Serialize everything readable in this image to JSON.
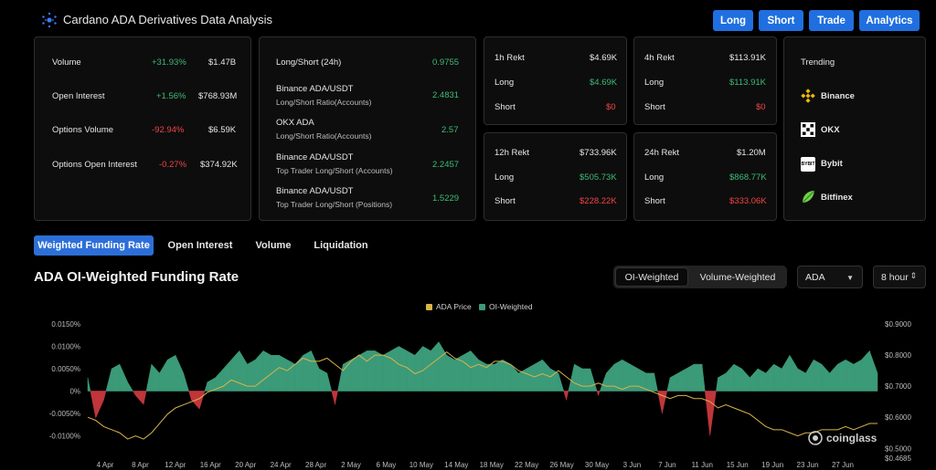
{
  "header": {
    "title": "Cardano ADA Derivatives Data Analysis",
    "nav": [
      "Long",
      "Short",
      "Trade",
      "Analytics"
    ],
    "accent": "#1f6fe0"
  },
  "stats": [
    {
      "label": "Volume",
      "change": "+31.93%",
      "value": "$1.47B",
      "dir": "up"
    },
    {
      "label": "Open Interest",
      "change": "+1.56%",
      "value": "$768.93M",
      "dir": "up"
    },
    {
      "label": "Options Volume",
      "change": "-92.94%",
      "value": "$6.59K",
      "dir": "down"
    },
    {
      "label": "Options Open Interest",
      "change": "-0.27%",
      "value": "$374.92K",
      "dir": "down"
    }
  ],
  "ratios": [
    {
      "label": "Long/Short (24h)",
      "sub": "",
      "value": "0.9755"
    },
    {
      "label": "Binance ADA/USDT",
      "sub": "Long/Short Ratio(Accounts)",
      "value": "2.4831"
    },
    {
      "label": "OKX ADA",
      "sub": "Long/Short Ratio(Accounts)",
      "value": "2.57"
    },
    {
      "label": "Binance ADA/USDT",
      "sub": "Top Trader Long/Short (Accounts)",
      "value": "2.2457"
    },
    {
      "label": "Binance ADA/USDT",
      "sub": "Top Trader Long/Short (Positions)",
      "value": "1.5229"
    }
  ],
  "rekt": [
    {
      "title": "1h Rekt",
      "total": "$4.69K",
      "long_label": "Long",
      "long": "$4.69K",
      "short_label": "Short",
      "short": "$0"
    },
    {
      "title": "4h Rekt",
      "total": "$113.91K",
      "long_label": "Long",
      "long": "$113.91K",
      "short_label": "Short",
      "short": "$0"
    },
    {
      "title": "12h Rekt",
      "total": "$733.96K",
      "long_label": "Long",
      "long": "$505.73K",
      "short_label": "Short",
      "short": "$228.22K"
    },
    {
      "title": "24h Rekt",
      "total": "$1.20M",
      "long_label": "Long",
      "long": "$868.77K",
      "short_label": "Short",
      "short": "$333.06K"
    }
  ],
  "trending": {
    "title": "Trending",
    "items": [
      {
        "name": "Binance",
        "icon": "binance-icon"
      },
      {
        "name": "OKX",
        "icon": "okx-icon"
      },
      {
        "name": "Bybit",
        "icon": "bybit-icon",
        "icon_text": "BYBIT"
      },
      {
        "name": "Bitfinex",
        "icon": "bitfinex-icon"
      }
    ]
  },
  "tabs": [
    "Weighted Funding Rate",
    "Open Interest",
    "Volume",
    "Liquidation"
  ],
  "chart_header": {
    "title": "ADA OI-Weighted Funding Rate",
    "segments": [
      "OI-Weighted",
      "Volume-Weighted"
    ],
    "coin_select": "ADA",
    "interval_select": "8 hour",
    "watermark": "coinglass"
  },
  "colors": {
    "positive": "#3b9a78",
    "negative": "#c0363b",
    "price": "#d9b44a"
  },
  "chart_data": {
    "type": "area",
    "title": "ADA OI-Weighted Funding Rate",
    "legend": [
      "ADA Price",
      "OI-Weighted"
    ],
    "legend_position": "top-center",
    "x_labels": [
      "4 Apr",
      "8 Apr",
      "12 Apr",
      "16 Apr",
      "20 Apr",
      "24 Apr",
      "28 Apr",
      "2 May",
      "6 May",
      "10 May",
      "14 May",
      "18 May",
      "22 May",
      "26 May",
      "30 May",
      "3 Jun",
      "7 Jun",
      "11 Jun",
      "15 Jun",
      "19 Jun",
      "23 Jun",
      "27 Jun"
    ],
    "y_left_ticks": [
      "0.0150%",
      "0.0100%",
      "0.0050%",
      "0%",
      "-0.0050%",
      "-0.0100%"
    ],
    "y_left_range": [
      -0.015,
      0.015
    ],
    "y_right_ticks": [
      "$0.9000",
      "$0.8000",
      "$0.7000",
      "$0.6000",
      "$0.5000",
      "$0.4685"
    ],
    "y_right_range": [
      0.4685,
      0.9
    ],
    "series": [
      {
        "name": "OI-Weighted",
        "unit": "%",
        "values": [
          0.003,
          -0.006,
          -0.002,
          0.005,
          0.006,
          0.002,
          -0.001,
          -0.003,
          0.006,
          0.004,
          0.007,
          0.008,
          0.004,
          -0.002,
          -0.004,
          0.002,
          0.003,
          0.005,
          0.007,
          0.009,
          0.006,
          0.007,
          0.009,
          0.008,
          0.008,
          0.007,
          0.006,
          0.008,
          0.009,
          0.005,
          0.004,
          -0.003,
          0.006,
          0.007,
          0.008,
          0.009,
          0.009,
          0.008,
          0.009,
          0.01,
          0.009,
          0.008,
          0.01,
          0.009,
          0.011,
          0.008,
          0.007,
          0.008,
          0.009,
          0.007,
          0.006,
          0.006,
          0.007,
          0.006,
          0.004,
          0.005,
          0.006,
          0.007,
          0.005,
          0.004,
          -0.002,
          0.006,
          0.005,
          0.005,
          -0.001,
          0.004,
          0.006,
          0.007,
          0.006,
          0.005,
          0.004,
          0.004,
          -0.005,
          0.003,
          0.004,
          0.005,
          0.006,
          0.006,
          -0.01,
          0.003,
          0.004,
          0.006,
          0.005,
          0.003,
          0.005,
          0.004,
          0.006,
          0.005,
          0.008,
          0.005,
          0.004,
          0.007,
          0.006,
          0.004,
          0.006,
          0.007,
          0.006,
          0.007,
          0.009,
          0.004
        ]
      },
      {
        "name": "ADA Price",
        "unit": "USD",
        "values": [
          0.6,
          0.59,
          0.57,
          0.56,
          0.55,
          0.53,
          0.54,
          0.53,
          0.55,
          0.58,
          0.61,
          0.63,
          0.64,
          0.65,
          0.66,
          0.68,
          0.69,
          0.7,
          0.72,
          0.71,
          0.7,
          0.7,
          0.72,
          0.74,
          0.76,
          0.75,
          0.77,
          0.79,
          0.78,
          0.78,
          0.79,
          0.77,
          0.75,
          0.78,
          0.8,
          0.78,
          0.8,
          0.8,
          0.79,
          0.77,
          0.76,
          0.74,
          0.75,
          0.77,
          0.79,
          0.81,
          0.79,
          0.78,
          0.76,
          0.77,
          0.76,
          0.78,
          0.78,
          0.77,
          0.75,
          0.74,
          0.73,
          0.74,
          0.73,
          0.75,
          0.73,
          0.71,
          0.7,
          0.7,
          0.71,
          0.7,
          0.7,
          0.69,
          0.7,
          0.7,
          0.69,
          0.68,
          0.67,
          0.66,
          0.67,
          0.67,
          0.66,
          0.66,
          0.65,
          0.63,
          0.64,
          0.63,
          0.62,
          0.61,
          0.59,
          0.57,
          0.56,
          0.56,
          0.55,
          0.54,
          0.55,
          0.55,
          0.56,
          0.56,
          0.56,
          0.57,
          0.56,
          0.57,
          0.58,
          0.58
        ]
      }
    ]
  }
}
